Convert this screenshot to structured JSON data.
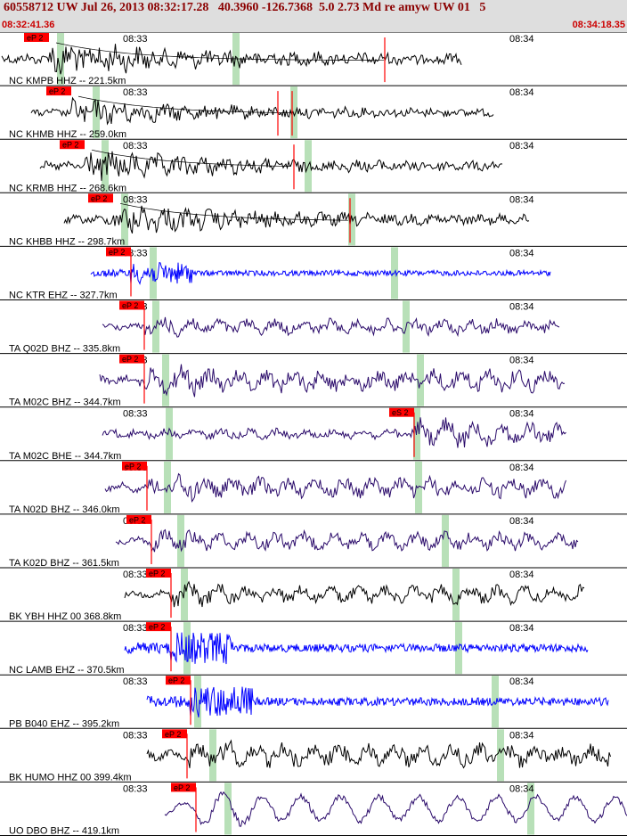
{
  "header": {
    "title": "60558712 UW Jul 26, 2013 08:32:17.28   40.3960 -126.7368  5.0 2.73 Md re amyw UW 01   5",
    "start_time": "08:32:41.36",
    "end_time": "08:34:18.35"
  },
  "colors": {
    "pick_red": "#ff0000",
    "window_green": "#b8e0b8",
    "trace_black": "#000000",
    "trace_blue": "#0000ff",
    "trace_purple": "#2a0a6a",
    "header_bg": "#dedede",
    "title_text": "#8b0000"
  },
  "chart_data": {
    "type": "line",
    "title": "60558712 UW Jul 26, 2013 08:32:17.28   40.3960 -126.7368  5.0 2.73 Md re amyw UW 01   5",
    "x_range": [
      "08:32:41.36",
      "08:34:18.35"
    ],
    "x_ticks": [
      "08:33",
      "08:34"
    ],
    "traces": [
      {
        "label": "NC KMPB HHZ -- 221.5km",
        "pick": "eP 2",
        "color": "black"
      },
      {
        "label": "NC KHMB HHZ -- 259.0km",
        "pick": "eP 2",
        "color": "black"
      },
      {
        "label": "NC KRMB HHZ -- 268.6km",
        "pick": "eP 2",
        "color": "black"
      },
      {
        "label": "NC KHBB HHZ -- 298.7km",
        "pick": "eP 2",
        "color": "black"
      },
      {
        "label": "NC KTR EHZ -- 327.7km",
        "pick": "eP 2",
        "color": "blue"
      },
      {
        "label": "TA Q02D BHZ -- 335.8km",
        "pick": "eP 2",
        "color": "purple"
      },
      {
        "label": "TA M02C BHZ -- 344.7km",
        "pick": "eP 2",
        "color": "purple"
      },
      {
        "label": "TA M02C BHE -- 344.7km",
        "pick": "eS 2",
        "color": "purple"
      },
      {
        "label": "TA N02D BHZ -- 346.0km",
        "pick": "eP 2",
        "color": "purple"
      },
      {
        "label": "TA K02D BHZ -- 361.5km",
        "pick": "eP 2",
        "color": "purple"
      },
      {
        "label": "BK YBH HHZ 00 368.8km",
        "pick": "eP 2",
        "color": "black"
      },
      {
        "label": "NC LAMB EHZ -- 370.5km",
        "pick": "eP 2",
        "color": "blue"
      },
      {
        "label": "PB B040 EHZ -- 395.2km",
        "pick": "eP 2",
        "color": "blue"
      },
      {
        "label": "BK HUMO HHZ 00 399.4km",
        "pick": "eP 2",
        "color": "black"
      },
      {
        "label": "UO DBO BHZ -- 419.1km",
        "pick": "eP 2",
        "color": "purple"
      }
    ]
  }
}
